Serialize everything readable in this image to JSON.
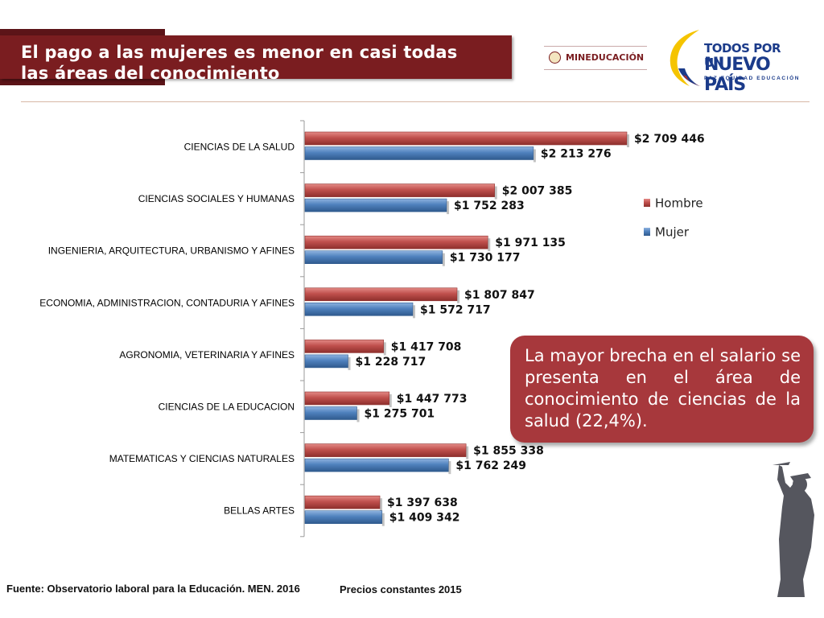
{
  "header": {
    "title_line1": "El pago a las mujeres es menor en casi todas",
    "title_line2": "las áreas del conocimiento"
  },
  "logos": {
    "ministry": "MINEDUCACIÓN",
    "campaign_line1": "TODOS POR UN",
    "campaign_line2": "NUEVO PAÍS",
    "campaign_line3": "PAZ EQUIDAD EDUCACIÓN"
  },
  "colors": {
    "hombre": "#c0504d",
    "mujer": "#4f81bd",
    "banner": "#7a1d20",
    "callout": "#a7383c"
  },
  "chart_data": {
    "type": "bar",
    "orientation": "horizontal",
    "categories": [
      "CIENCIAS DE LA SALUD",
      "CIENCIAS SOCIALES Y HUMANAS",
      "INGENIERIA, ARQUITECTURA, URBANISMO Y AFINES",
      "ECONOMIA, ADMINISTRACION, CONTADURIA Y AFINES",
      "AGRONOMIA, VETERINARIA Y AFINES",
      "CIENCIAS DE LA EDUCACION",
      "MATEMATICAS Y CIENCIAS NATURALES",
      "BELLAS ARTES"
    ],
    "series": [
      {
        "name": "Hombre",
        "values": [
          2709446,
          2007385,
          1971135,
          1807847,
          1417708,
          1447773,
          1855338,
          1397638
        ],
        "labels": [
          "$2 709 446",
          "$2 007 385",
          "$1 971 135",
          "$1 807 847",
          "$1 417 708",
          "$1 447 773",
          "$1 855 338",
          "$1 397 638"
        ]
      },
      {
        "name": "Mujer",
        "values": [
          2213276,
          1752283,
          1730177,
          1572717,
          1228717,
          1275701,
          1762249,
          1409342
        ],
        "labels": [
          "$2 213 276",
          "$1 752 283",
          "$1 730 177",
          "$1 572 717",
          "$1 228 717",
          "$1 275 701",
          "$1 762 249",
          "$1 409 342"
        ]
      }
    ],
    "xlim": [
      1000000,
      2900000
    ],
    "grid": false,
    "legend": "right"
  },
  "callout": {
    "text": "La mayor brecha en el salario se presenta en el área de conocimiento de ciencias de la salud (22,4%)."
  },
  "footer": {
    "source": "Fuente: Observatorio laboral para la Educación. MEN. 2016",
    "prices": "Precios constantes  2015"
  }
}
